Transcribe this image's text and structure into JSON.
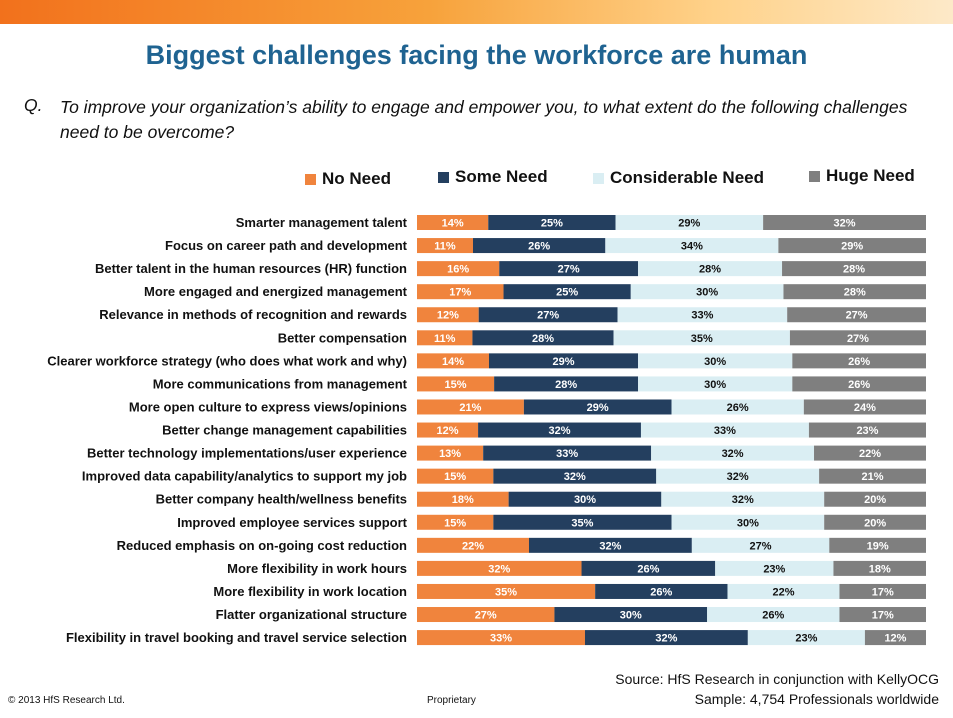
{
  "title": "Biggest challenges facing the workforce are human",
  "question": {
    "label": "Q.",
    "text": "To improve your organization’s ability to engage and empower you, to what extent do the following challenges need to be overcome?"
  },
  "chart_data": {
    "type": "bar",
    "orientation": "horizontal",
    "stacked": true,
    "percent_labels": true,
    "legend_position": "top",
    "grid": false,
    "categories": [
      "Smarter management talent",
      "Focus on career path and development",
      "Better talent in the human resources (HR) function",
      "More engaged and energized management",
      "Relevance in methods of recognition and rewards",
      "Better compensation",
      "Clearer workforce strategy (who does what work and why)",
      "More communications from management",
      "More open culture to express views/opinions",
      "Better change management capabilities",
      "Better technology implementations/user experience",
      "Improved data capability/analytics to support my job",
      "Better company health/wellness benefits",
      "Improved employee services support",
      "Reduced emphasis on on-going cost reduction",
      "More flexibility in work hours",
      "More flexibility in work location",
      "Flatter organizational structure",
      "Flexibility in travel booking and travel service selection"
    ],
    "series": [
      {
        "name": "No Need",
        "color": "#f0843d",
        "label_color": "#ffffff",
        "values": [
          14,
          11,
          16,
          17,
          12,
          11,
          14,
          15,
          21,
          12,
          13,
          15,
          18,
          15,
          22,
          32,
          35,
          27,
          33
        ]
      },
      {
        "name": "Some Need",
        "color": "#243f5f",
        "label_color": "#ffffff",
        "values": [
          25,
          26,
          27,
          25,
          27,
          28,
          29,
          28,
          29,
          32,
          33,
          32,
          30,
          35,
          32,
          26,
          26,
          30,
          32
        ]
      },
      {
        "name": "Considerable Need",
        "color": "#daeef3",
        "label_color": "#111111",
        "values": [
          29,
          34,
          28,
          30,
          33,
          35,
          30,
          30,
          26,
          33,
          32,
          32,
          32,
          30,
          27,
          23,
          22,
          26,
          23
        ]
      },
      {
        "name": "Huge Need",
        "color": "#7f7f7f",
        "label_color": "#ffffff",
        "values": [
          32,
          29,
          28,
          28,
          27,
          27,
          26,
          26,
          24,
          23,
          22,
          21,
          20,
          20,
          19,
          18,
          17,
          17,
          12
        ]
      }
    ]
  },
  "source": {
    "line1": "Source:   HfS Research in conjunction with KellyOCG",
    "line2": "Sample:  4,754 Professionals worldwide"
  },
  "footer": {
    "copyright": "© 2013 HfS Research Ltd.",
    "proprietary": "Proprietary"
  }
}
